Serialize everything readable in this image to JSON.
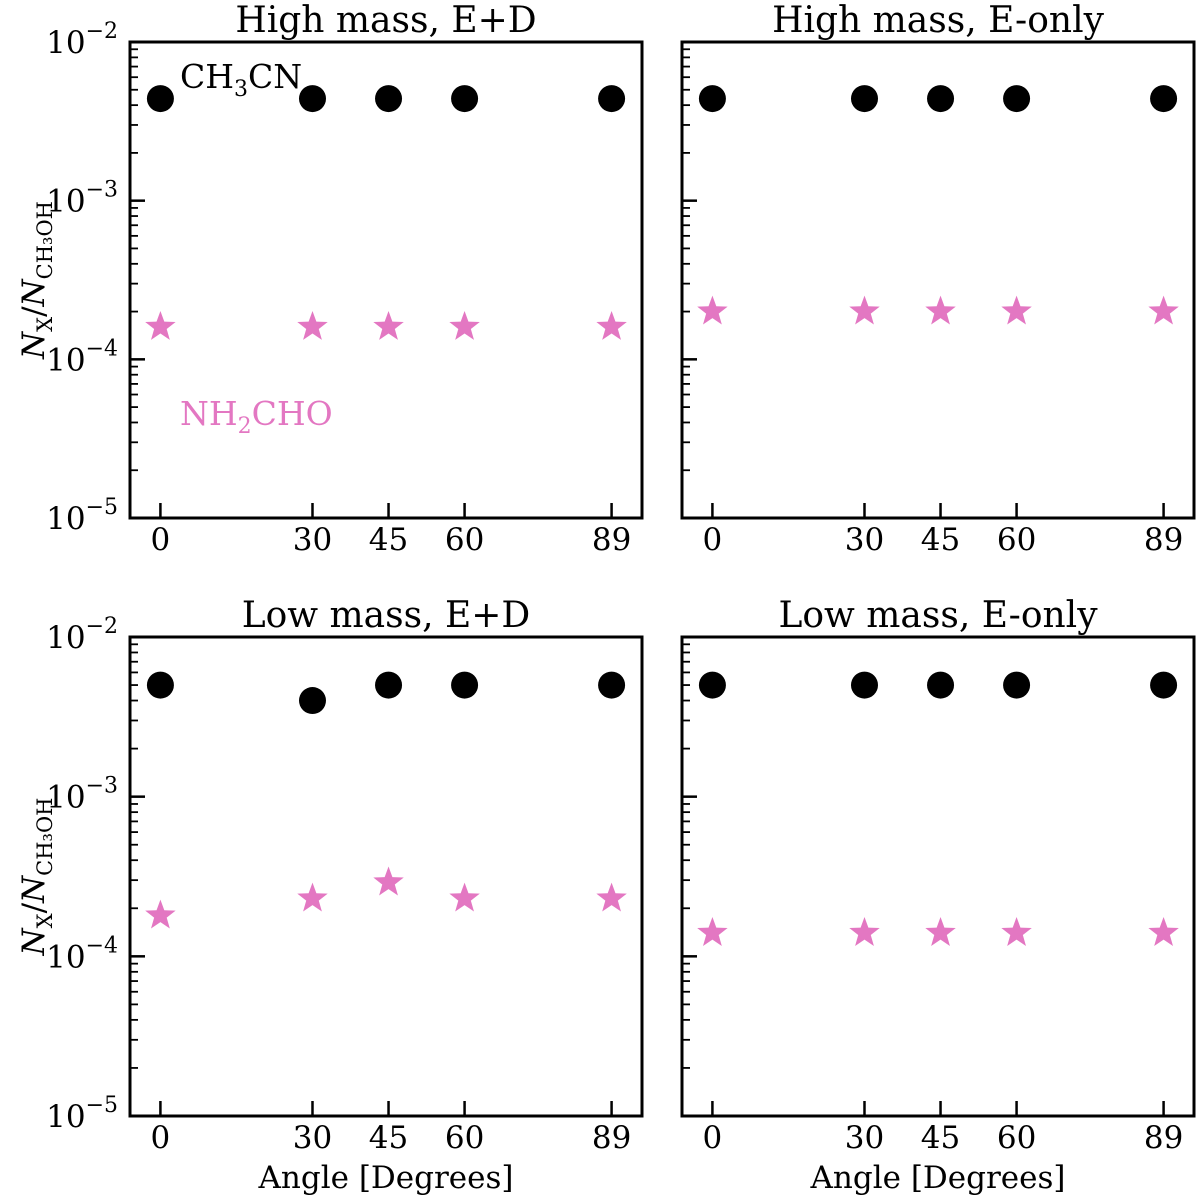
{
  "chart_data": [
    {
      "type": "scatter",
      "title": "High mass, E+D",
      "xlabel": "",
      "ylabel": "N_X/N_CH3OH",
      "yscale": "log",
      "ylim": [
        1e-05,
        0.01
      ],
      "x": [
        0,
        30,
        45,
        60,
        89
      ],
      "xticks": [
        "0",
        "30",
        "45",
        "60",
        "89"
      ],
      "annotations": [
        {
          "label": "CH3CN",
          "color": "#000000"
        },
        {
          "label": "NH2CHO",
          "color": "#e377c2"
        }
      ],
      "series": [
        {
          "name": "CH3CN",
          "marker": "circle",
          "color": "#000000",
          "values": [
            0.0044,
            0.0044,
            0.0044,
            0.0044,
            0.0044
          ]
        },
        {
          "name": "NH2CHO",
          "marker": "star",
          "color": "#e377c2",
          "values": [
            0.00016,
            0.00016,
            0.00016,
            0.00016,
            0.00016
          ]
        }
      ]
    },
    {
      "type": "scatter",
      "title": "High mass, E-only",
      "xlabel": "",
      "ylabel": "",
      "yscale": "log",
      "ylim": [
        1e-05,
        0.01
      ],
      "x": [
        0,
        30,
        45,
        60,
        89
      ],
      "xticks": [
        "0",
        "30",
        "45",
        "60",
        "89"
      ],
      "series": [
        {
          "name": "CH3CN",
          "marker": "circle",
          "color": "#000000",
          "values": [
            0.0044,
            0.0044,
            0.0044,
            0.0044,
            0.0044
          ]
        },
        {
          "name": "NH2CHO",
          "marker": "star",
          "color": "#e377c2",
          "values": [
            0.0002,
            0.0002,
            0.0002,
            0.0002,
            0.0002
          ]
        }
      ]
    },
    {
      "type": "scatter",
      "title": "Low mass, E+D",
      "xlabel": "Angle [Degrees]",
      "ylabel": "N_X/N_CH3OH",
      "yscale": "log",
      "ylim": [
        1e-05,
        0.01
      ],
      "x": [
        0,
        30,
        45,
        60,
        89
      ],
      "xticks": [
        "0",
        "30",
        "45",
        "60",
        "89"
      ],
      "series": [
        {
          "name": "CH3CN",
          "marker": "circle",
          "color": "#000000",
          "values": [
            0.005,
            0.004,
            0.005,
            0.005,
            0.005
          ]
        },
        {
          "name": "NH2CHO",
          "marker": "star",
          "color": "#e377c2",
          "values": [
            0.00018,
            0.00023,
            0.00029,
            0.00023,
            0.00023
          ]
        }
      ]
    },
    {
      "type": "scatter",
      "title": "Low mass, E-only",
      "xlabel": "Angle [Degrees]",
      "ylabel": "",
      "yscale": "log",
      "ylim": [
        1e-05,
        0.01
      ],
      "x": [
        0,
        30,
        45,
        60,
        89
      ],
      "xticks": [
        "0",
        "30",
        "45",
        "60",
        "89"
      ],
      "series": [
        {
          "name": "CH3CN",
          "marker": "circle",
          "color": "#000000",
          "values": [
            0.005,
            0.005,
            0.005,
            0.005,
            0.005
          ]
        },
        {
          "name": "NH2CHO",
          "marker": "star",
          "color": "#e377c2",
          "values": [
            0.00014,
            0.00014,
            0.00014,
            0.00014,
            0.00014
          ]
        }
      ]
    }
  ]
}
